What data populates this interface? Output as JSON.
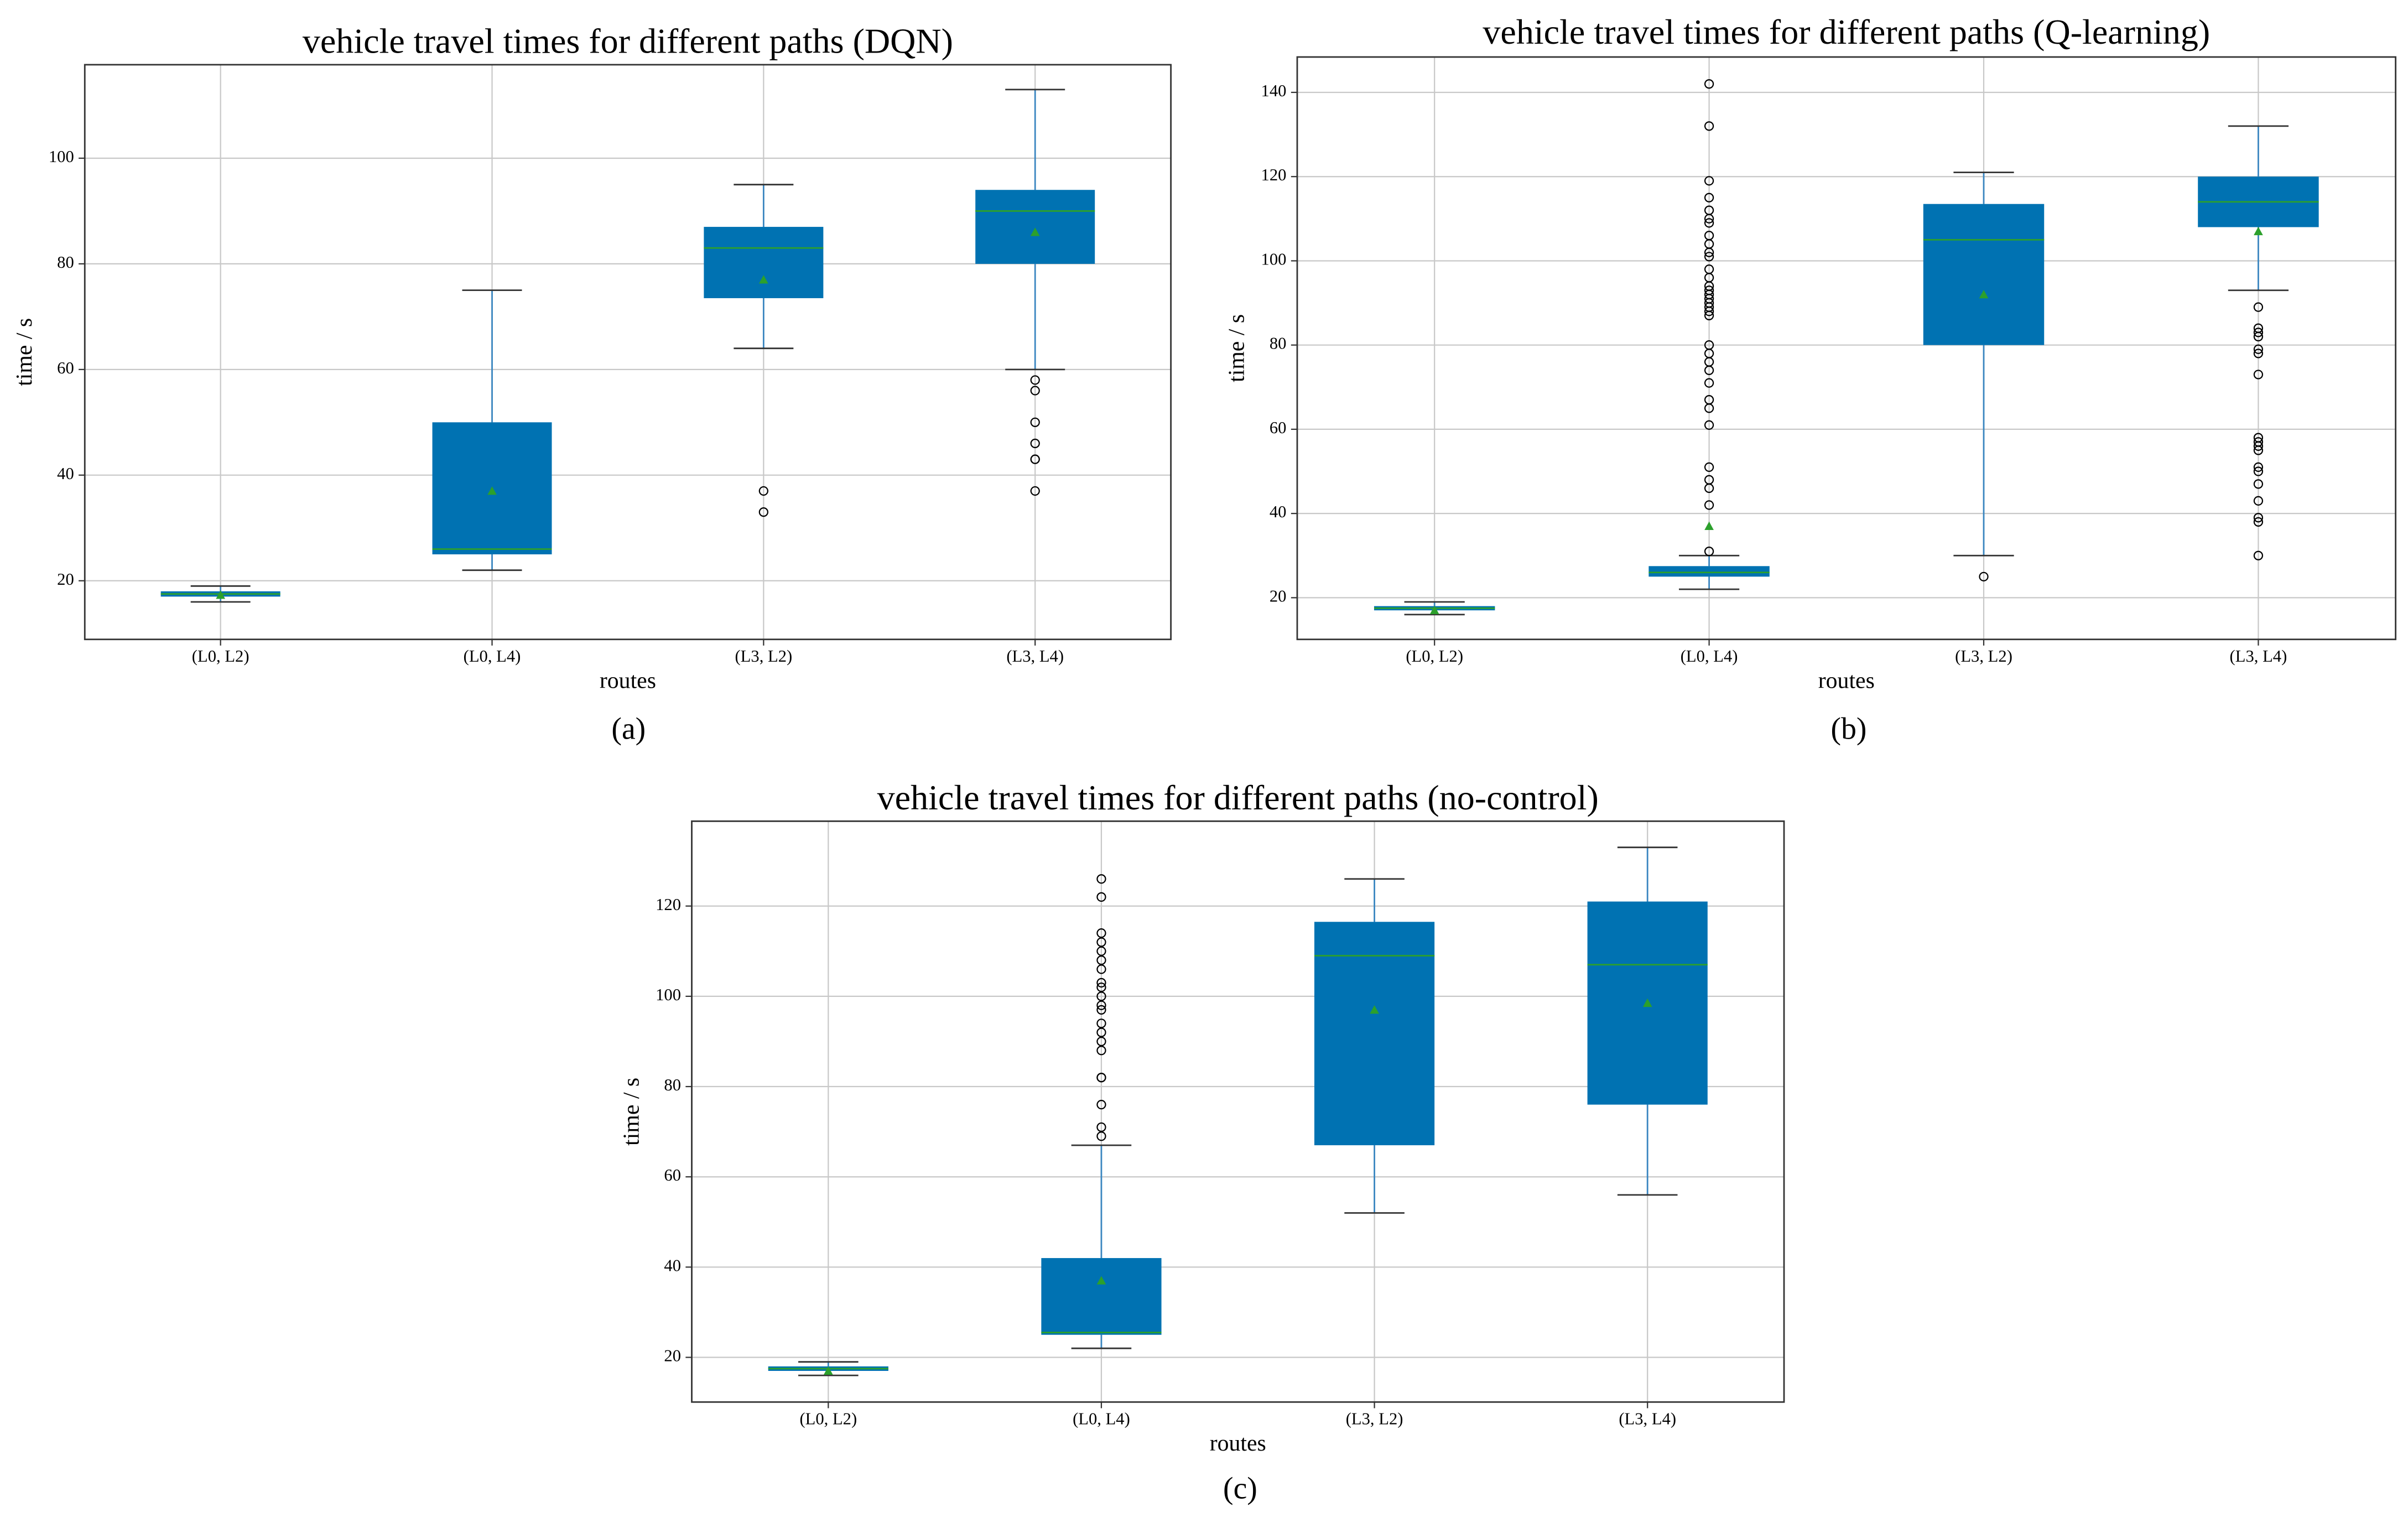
{
  "chart_data": [
    {
      "type": "box",
      "title": "vehicle travel times for different paths (DQN)",
      "xlabel": "routes",
      "ylabel": "time / s",
      "caption": "(a)",
      "categories": [
        "(L0, L2)",
        "(L0, L4)",
        "(L3, L2)",
        "(L3, L4)"
      ],
      "ylim": [
        8.9,
        117.7
      ],
      "yticks": [
        20,
        40,
        60,
        80,
        100
      ],
      "grid": true,
      "color": "#0072b2",
      "median_color": "#2ca02c",
      "mean_color": "#2ca02c",
      "boxes": [
        {
          "whislo": 16,
          "q1": 17,
          "med": 17.5,
          "q3": 18,
          "whishi": 19,
          "mean": 17.3,
          "fliers": []
        },
        {
          "whislo": 22,
          "q1": 25,
          "med": 26,
          "q3": 50,
          "whishi": 75,
          "mean": 37,
          "fliers": []
        },
        {
          "whislo": 64,
          "q1": 73.5,
          "med": 83,
          "q3": 87,
          "whishi": 95,
          "mean": 77,
          "fliers": [
            37,
            33
          ]
        },
        {
          "whislo": 60,
          "q1": 80,
          "med": 90,
          "q3": 94,
          "whishi": 113,
          "mean": 86,
          "fliers": [
            58,
            56,
            50,
            46,
            43,
            43,
            37
          ]
        }
      ]
    },
    {
      "type": "box",
      "title": "vehicle travel times for different paths (Q-learning)",
      "xlabel": "routes",
      "ylabel": "time / s",
      "caption": "(b)",
      "categories": [
        "(L0, L2)",
        "(L0, L4)",
        "(L3, L2)",
        "(L3, L4)"
      ],
      "ylim": [
        10.1,
        148.4
      ],
      "yticks": [
        20,
        40,
        60,
        80,
        100,
        120,
        140
      ],
      "grid": true,
      "color": "#0072b2",
      "median_color": "#2ca02c",
      "mean_color": "#2ca02c",
      "boxes": [
        {
          "whislo": 16,
          "q1": 17,
          "med": 17.5,
          "q3": 18,
          "whishi": 19,
          "mean": 17,
          "fliers": []
        },
        {
          "whislo": 22,
          "q1": 25,
          "med": 26,
          "q3": 27.5,
          "whishi": 30,
          "mean": 37,
          "fliers": [
            142,
            132,
            119,
            115,
            112,
            110,
            109,
            106,
            104,
            102,
            101,
            98,
            96,
            94,
            93,
            92,
            91,
            90,
            89,
            88,
            87,
            80,
            78,
            76,
            74,
            71,
            67,
            65,
            61,
            51,
            48,
            46,
            42,
            31
          ]
        },
        {
          "whislo": 30,
          "q1": 80,
          "med": 105,
          "q3": 113.5,
          "whishi": 121,
          "mean": 92,
          "fliers": [
            25
          ]
        },
        {
          "whislo": 93,
          "q1": 108,
          "med": 114,
          "q3": 120,
          "whishi": 132,
          "mean": 107,
          "fliers": [
            89,
            84,
            83,
            82,
            79,
            78,
            73,
            58,
            57,
            56,
            55,
            51,
            50,
            47,
            43,
            39,
            38,
            30
          ]
        }
      ]
    },
    {
      "type": "box",
      "title": "vehicle travel times for different paths (no-control)",
      "xlabel": "routes",
      "ylabel": "time / s",
      "caption": "(c)",
      "categories": [
        "(L0, L2)",
        "(L0, L4)",
        "(L3, L2)",
        "(L3, L4)"
      ],
      "ylim": [
        10.1,
        138.8
      ],
      "yticks": [
        20,
        40,
        60,
        80,
        100,
        120
      ],
      "grid": true,
      "color": "#0072b2",
      "median_color": "#2ca02c",
      "mean_color": "#2ca02c",
      "boxes": [
        {
          "whislo": 16,
          "q1": 17,
          "med": 17.5,
          "q3": 18,
          "whishi": 19,
          "mean": 17,
          "fliers": []
        },
        {
          "whislo": 22,
          "q1": 25,
          "med": 25.5,
          "q3": 42,
          "whishi": 67,
          "mean": 37,
          "fliers": [
            126,
            122,
            114,
            112,
            110,
            108,
            106,
            103,
            102,
            100,
            98,
            97,
            94,
            92,
            90,
            88,
            82,
            82,
            76,
            71,
            69
          ]
        },
        {
          "whislo": 52,
          "q1": 67,
          "med": 109,
          "q3": 116.5,
          "whishi": 126,
          "mean": 97,
          "fliers": []
        },
        {
          "whislo": 56,
          "q1": 76,
          "med": 107,
          "q3": 121,
          "whishi": 133,
          "mean": 98.5,
          "fliers": []
        }
      ]
    }
  ]
}
